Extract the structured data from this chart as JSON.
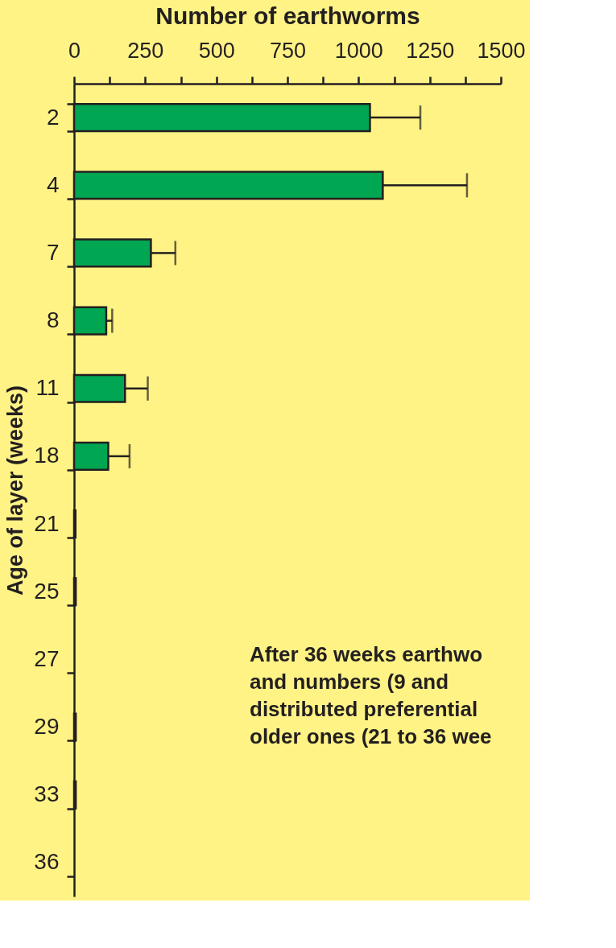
{
  "chart_data": {
    "type": "bar",
    "orientation": "horizontal",
    "xlabel": "Number of earthworms",
    "ylabel": "Age of layer (weeks)",
    "categories": [
      "2",
      "4",
      "7",
      "8",
      "11",
      "18",
      "21",
      "25",
      "27",
      "29",
      "33",
      "36"
    ],
    "values": [
      1040,
      1085,
      270,
      113,
      179,
      120,
      5,
      6,
      0,
      6,
      6,
      0
    ],
    "errors": [
      177,
      296,
      86,
      21,
      80,
      75,
      null,
      null,
      null,
      null,
      null,
      null
    ],
    "color": "#00a651",
    "xlim": [
      0,
      1500
    ],
    "xticks": [
      0,
      {
        "value": 125,
        "label": null
      },
      250,
      {
        "value": 375,
        "label": null
      },
      500,
      {
        "value": 625,
        "label": null
      },
      750,
      {
        "value": 875,
        "label": null
      },
      1000,
      {
        "value": 1125,
        "label": null
      },
      1250,
      {
        "value": 1375,
        "label": null
      },
      1500
    ],
    "grid": false,
    "annotations": [
      "After 36 weeks earthwo",
      "and  numbers  (9  and",
      "distributed preferential",
      "older ones (21 to 36 wee"
    ]
  }
}
